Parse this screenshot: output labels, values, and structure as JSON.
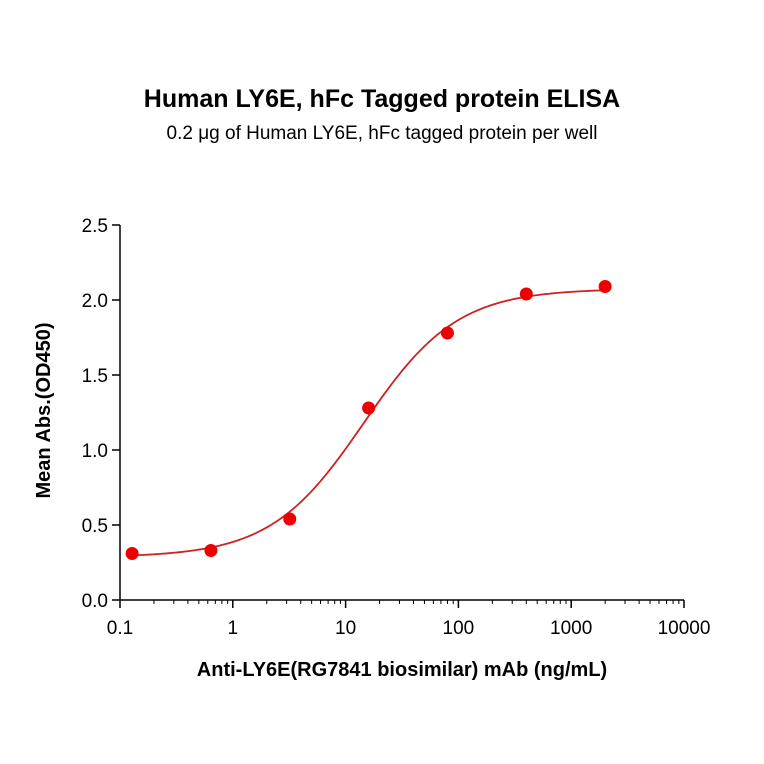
{
  "title": "Human LY6E, hFc Tagged protein ELISA",
  "subtitle": "0.2 μg of Human LY6E, hFc tagged protein per well",
  "chart_data": {
    "type": "scatter",
    "title": "Human LY6E, hFc Tagged protein ELISA",
    "subtitle": "0.2 μg of Human LY6E, hFc tagged protein per well",
    "xlabel": "Anti-LY6E(RG7841 biosimilar) mAb (ng/mL)",
    "ylabel": "Mean Abs.(OD450)",
    "xscale": "log",
    "xlim": [
      0.1,
      10000
    ],
    "ylim": [
      0,
      2.5
    ],
    "xticks": [
      "0.1",
      "1",
      "10",
      "100",
      "1000",
      "10000"
    ],
    "yticks": [
      "0.0",
      "0.5",
      "1.0",
      "1.5",
      "2.0",
      "2.5"
    ],
    "grid": false,
    "colors": {
      "points": "#ee0000",
      "curve": "#cc2222"
    },
    "series": [
      {
        "x": [
          0.128,
          0.64,
          3.2,
          16,
          80,
          400,
          2000
        ],
        "y": [
          0.31,
          0.33,
          0.54,
          1.28,
          1.78,
          2.04,
          2.09
        ]
      }
    ],
    "fit": {
      "model": "4PL",
      "bottom": 0.285,
      "top": 2.075,
      "ec50": 14.5,
      "hill": 1.05
    }
  }
}
